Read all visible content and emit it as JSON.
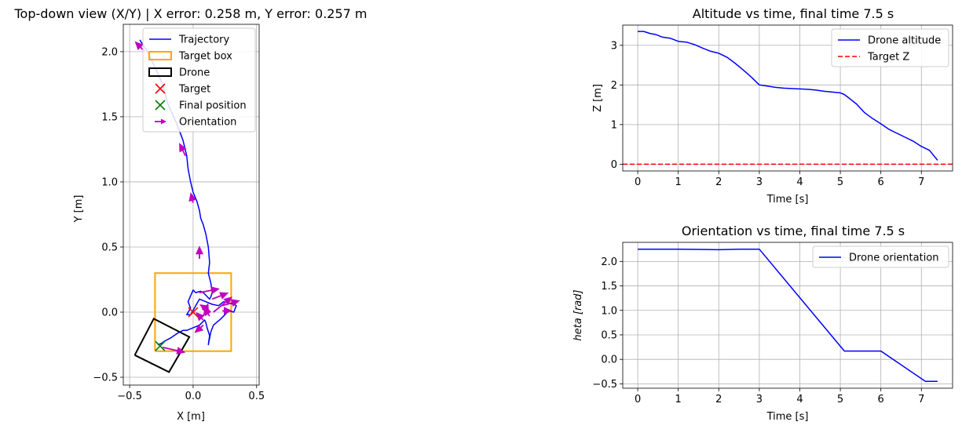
{
  "chart_data": [
    {
      "type": "line",
      "title": "Top-down view (X/Y) | X error: 0.258 m, Y error: 0.257 m",
      "xlabel": "X [m]",
      "ylabel": "Y [m]",
      "xlim": [
        -0.55,
        0.52
      ],
      "ylim": [
        -0.56,
        2.21
      ],
      "xticks": [
        -0.5,
        0.0,
        0.5
      ],
      "xtick_labels": [
        "−0.5",
        "0.0",
        "0.5"
      ],
      "yticks": [
        -0.5,
        0.0,
        0.5,
        1.0,
        1.5,
        2.0
      ],
      "ytick_labels": [
        "−0.5",
        "0.0",
        "0.5",
        "1.0",
        "1.5",
        "2.0"
      ],
      "grid": true,
      "legend_position": "top-right",
      "legend": [
        {
          "label": "Trajectory",
          "kind": "line",
          "color": "#0000ff"
        },
        {
          "label": "Target box",
          "kind": "rect",
          "color": "#ffa500"
        },
        {
          "label": "Drone",
          "kind": "rect",
          "color": "#000000"
        },
        {
          "label": "Target",
          "kind": "x",
          "color": "#ff0000"
        },
        {
          "label": "Final position",
          "kind": "x",
          "color": "#008000"
        },
        {
          "label": "Orientation",
          "kind": "arrow",
          "color": "#bf00bf"
        }
      ],
      "trajectory": {
        "color": "#0000ff",
        "x": [
          -0.42,
          -0.36,
          -0.3,
          -0.24,
          -0.2,
          -0.13,
          -0.08,
          -0.05,
          -0.04,
          -0.02,
          0.0,
          0.03,
          0.05,
          0.06,
          0.08,
          0.1,
          0.12,
          0.13,
          0.12,
          0.14,
          0.15,
          0.14,
          0.13,
          0.1,
          0.08,
          0.06,
          0.02,
          0.0,
          -0.04,
          -0.02,
          -0.05,
          -0.02,
          0.05,
          0.1,
          0.15,
          0.2,
          0.24,
          0.28,
          0.32,
          0.34,
          0.32,
          0.28,
          0.22,
          0.16,
          0.14,
          0.13,
          0.12,
          0.13,
          0.11,
          0.1,
          0.09,
          0.05,
          0.0,
          -0.05,
          -0.08,
          -0.12,
          -0.15,
          -0.18,
          -0.22,
          -0.25,
          -0.28
        ],
        "y": [
          2.09,
          2.0,
          1.88,
          1.75,
          1.6,
          1.45,
          1.32,
          1.2,
          1.1,
          1.0,
          0.92,
          0.85,
          0.78,
          0.72,
          0.67,
          0.6,
          0.5,
          0.38,
          0.3,
          0.22,
          0.15,
          0.12,
          0.1,
          0.13,
          0.15,
          0.16,
          0.15,
          0.17,
          0.08,
          0.03,
          -0.02,
          -0.02,
          0.1,
          0.08,
          0.06,
          0.05,
          0.08,
          0.07,
          0.06,
          0.05,
          0.0,
          0.01,
          -0.05,
          -0.1,
          -0.15,
          -0.2,
          -0.25,
          -0.18,
          -0.12,
          -0.08,
          -0.06,
          -0.1,
          -0.12,
          -0.14,
          -0.14,
          -0.16,
          -0.18,
          -0.2,
          -0.22,
          -0.24,
          -0.25
        ]
      },
      "target_box": {
        "color": "#ffa500",
        "x": [
          -0.3,
          0.3,
          0.3,
          -0.3,
          -0.3
        ],
        "y": [
          -0.3,
          -0.3,
          0.3,
          0.3,
          -0.3
        ]
      },
      "drone_box": {
        "color": "#000000",
        "x": [
          -0.46,
          -0.19,
          -0.03,
          -0.31,
          -0.46
        ],
        "y": [
          -0.33,
          -0.46,
          -0.19,
          -0.05,
          -0.33
        ]
      },
      "target_marker": {
        "color": "#ff0000",
        "x": 0.0,
        "y": 0.0
      },
      "final_marker": {
        "color": "#008000",
        "x": -0.26,
        "y": -0.26
      },
      "orientation_arrows": {
        "color": "#bf00bf",
        "x": [
          -0.38,
          -0.06,
          0.0,
          0.05,
          0.05,
          0.15,
          0.16,
          0.23,
          0.23,
          0.13,
          0.13,
          0.08,
          0.08,
          0.08,
          -0.24
        ],
        "y": [
          2.0,
          1.2,
          0.84,
          0.41,
          0.15,
          0.1,
          0.0,
          0.05,
          0.01,
          0.01,
          -0.03,
          -0.03,
          -0.06,
          -0.1,
          -0.27
        ],
        "dx": [
          -0.08,
          -0.05,
          -0.02,
          0.0,
          0.16,
          0.13,
          0.15,
          0.14,
          0.08,
          -0.08,
          -0.05,
          0.04,
          -0.06,
          -0.07,
          0.18
        ],
        "dy": [
          0.08,
          0.1,
          0.08,
          0.1,
          0.03,
          0.05,
          0.12,
          0.04,
          0.0,
          0.05,
          0.07,
          0.1,
          0.06,
          -0.06,
          -0.04
        ]
      }
    },
    {
      "type": "line",
      "title": "Altitude vs time, final time 7.5 s",
      "xlabel": "Time [s]",
      "ylabel": "Z [m]",
      "xlim": [
        -0.37,
        7.77
      ],
      "ylim": [
        -0.17,
        3.51
      ],
      "xticks": [
        0,
        1,
        2,
        3,
        4,
        5,
        6,
        7
      ],
      "yticks": [
        0,
        1,
        2,
        3
      ],
      "grid": true,
      "legend_position": "top-right",
      "series": [
        {
          "name": "Drone altitude",
          "color": "#0000ff",
          "style": "solid",
          "x": [
            0.0,
            0.15,
            0.3,
            0.45,
            0.6,
            0.8,
            1.0,
            1.2,
            1.4,
            1.6,
            1.8,
            2.0,
            2.2,
            2.4,
            2.6,
            2.8,
            3.0,
            3.2,
            3.4,
            3.6,
            3.8,
            4.0,
            4.2,
            4.4,
            4.6,
            4.8,
            5.0,
            5.1,
            5.2,
            5.4,
            5.6,
            5.8,
            6.0,
            6.2,
            6.4,
            6.6,
            6.8,
            7.0,
            7.2,
            7.4
          ],
          "y": [
            3.35,
            3.35,
            3.3,
            3.27,
            3.21,
            3.18,
            3.1,
            3.08,
            3.02,
            2.93,
            2.85,
            2.8,
            2.7,
            2.55,
            2.38,
            2.2,
            2.0,
            1.97,
            1.94,
            1.92,
            1.91,
            1.9,
            1.89,
            1.87,
            1.84,
            1.82,
            1.8,
            1.76,
            1.68,
            1.52,
            1.3,
            1.15,
            1.02,
            0.88,
            0.78,
            0.68,
            0.58,
            0.45,
            0.35,
            0.1
          ]
        },
        {
          "name": "Target Z",
          "color": "#ff0000",
          "style": "dashed",
          "x": [
            -0.37,
            7.77
          ],
          "y": [
            0.0,
            0.0
          ]
        }
      ]
    },
    {
      "type": "line",
      "title": "Orientation vs time, final time 7.5 s",
      "xlabel": "Time [s]",
      "ylabel": "heta [rad]",
      "xlim": [
        -0.37,
        7.77
      ],
      "ylim": [
        -0.59,
        2.39
      ],
      "xticks": [
        0,
        1,
        2,
        3,
        4,
        5,
        6,
        7
      ],
      "yticks": [
        -0.5,
        0.0,
        0.5,
        1.0,
        1.5,
        2.0
      ],
      "ytick_labels": [
        "−0.5",
        "0.0",
        "0.5",
        "1.0",
        "1.5",
        "2.0"
      ],
      "grid": true,
      "legend_position": "top-right",
      "series": [
        {
          "name": "Drone orientation",
          "color": "#0000ff",
          "style": "solid",
          "x": [
            0.0,
            1.0,
            2.0,
            2.5,
            3.0,
            5.1,
            5.5,
            6.0,
            7.1,
            7.4
          ],
          "y": [
            2.25,
            2.25,
            2.24,
            2.25,
            2.25,
            0.17,
            0.17,
            0.17,
            -0.45,
            -0.45
          ]
        }
      ]
    }
  ]
}
